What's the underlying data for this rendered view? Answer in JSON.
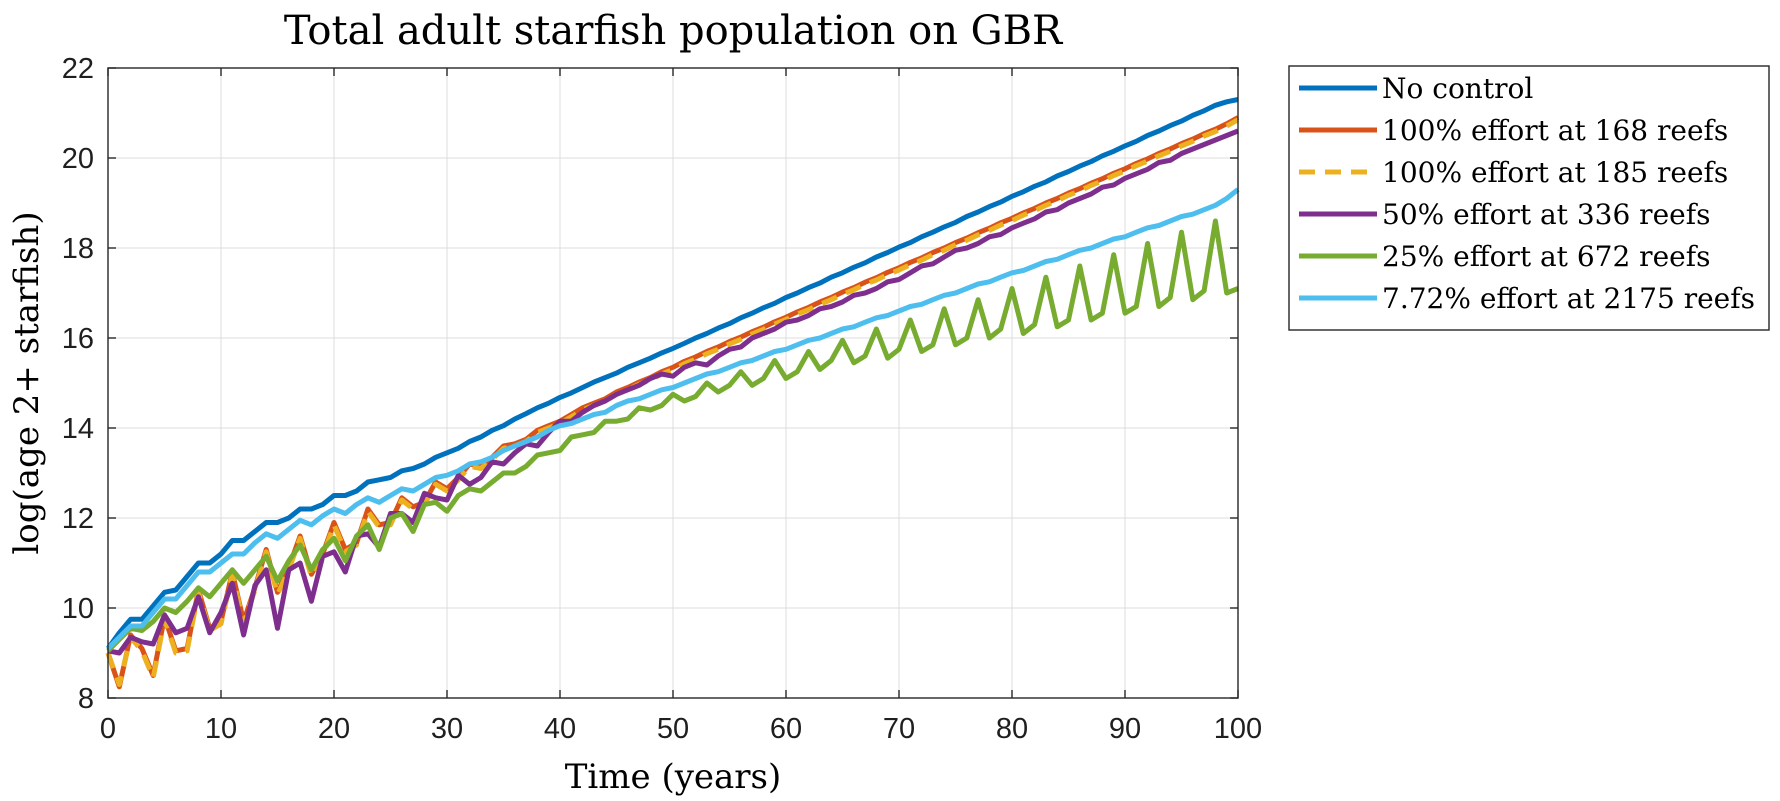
{
  "chart_data": {
    "type": "line",
    "title": "Total adult starfish population on GBR",
    "xlabel": "Time (years)",
    "ylabel": "log(age 2+ starfish)",
    "xlim": [
      0,
      100
    ],
    "ylim": [
      8,
      22
    ],
    "xticks": [
      0,
      10,
      20,
      30,
      40,
      50,
      60,
      70,
      80,
      90,
      100
    ],
    "yticks": [
      8,
      10,
      12,
      14,
      16,
      18,
      20,
      22
    ],
    "grid": true,
    "legend_position": "outside-top-right",
    "series": [
      {
        "name": "No control",
        "color": "#0072BD",
        "dash": "solid",
        "x": [
          0,
          1,
          2,
          3,
          4,
          5,
          6,
          7,
          8,
          9,
          10,
          11,
          12,
          13,
          14,
          15,
          16,
          17,
          18,
          19,
          20,
          21,
          22,
          23,
          24,
          25,
          26,
          27,
          28,
          29,
          30,
          31,
          32,
          33,
          34,
          35,
          36,
          37,
          38,
          39,
          40,
          41,
          42,
          43,
          44,
          45,
          46,
          47,
          48,
          49,
          50,
          51,
          52,
          53,
          54,
          55,
          56,
          57,
          58,
          59,
          60,
          61,
          62,
          63,
          64,
          65,
          66,
          67,
          68,
          69,
          70,
          71,
          72,
          73,
          74,
          75,
          76,
          77,
          78,
          79,
          80,
          81,
          82,
          83,
          84,
          85,
          86,
          87,
          88,
          89,
          90,
          91,
          92,
          93,
          94,
          95,
          96,
          97,
          98,
          99,
          100
        ],
        "y": [
          9.1,
          9.45,
          9.75,
          9.75,
          10.05,
          10.35,
          10.4,
          10.7,
          11.0,
          11.0,
          11.2,
          11.5,
          11.5,
          11.7,
          11.9,
          11.9,
          12.0,
          12.2,
          12.2,
          12.3,
          12.5,
          12.5,
          12.6,
          12.8,
          12.85,
          12.9,
          13.05,
          13.1,
          13.2,
          13.35,
          13.45,
          13.55,
          13.7,
          13.8,
          13.95,
          14.05,
          14.2,
          14.32,
          14.45,
          14.55,
          14.68,
          14.78,
          14.9,
          15.02,
          15.12,
          15.22,
          15.35,
          15.45,
          15.55,
          15.67,
          15.77,
          15.88,
          16.0,
          16.1,
          16.22,
          16.32,
          16.45,
          16.55,
          16.67,
          16.77,
          16.9,
          17.0,
          17.12,
          17.22,
          17.35,
          17.45,
          17.57,
          17.67,
          17.8,
          17.9,
          18.02,
          18.12,
          18.25,
          18.35,
          18.47,
          18.57,
          18.7,
          18.8,
          18.92,
          19.02,
          19.15,
          19.25,
          19.37,
          19.47,
          19.6,
          19.7,
          19.82,
          19.92,
          20.05,
          20.15,
          20.27,
          20.37,
          20.5,
          20.6,
          20.72,
          20.82,
          20.95,
          21.05,
          21.17,
          21.25,
          21.3
        ]
      },
      {
        "name": "100% effort at 168 reefs",
        "color": "#D95319",
        "dash": "solid",
        "x": [
          0,
          1,
          2,
          3,
          4,
          5,
          6,
          7,
          8,
          9,
          10,
          11,
          12,
          13,
          14,
          15,
          16,
          17,
          18,
          19,
          20,
          21,
          22,
          23,
          24,
          25,
          26,
          27,
          28,
          29,
          30,
          31,
          32,
          33,
          34,
          35,
          36,
          37,
          38,
          39,
          40,
          41,
          42,
          43,
          44,
          45,
          46,
          47,
          48,
          49,
          50,
          51,
          52,
          53,
          54,
          55,
          56,
          57,
          58,
          59,
          60,
          61,
          62,
          63,
          64,
          65,
          66,
          67,
          68,
          69,
          70,
          71,
          72,
          73,
          74,
          75,
          76,
          77,
          78,
          79,
          80,
          81,
          82,
          83,
          84,
          85,
          86,
          87,
          88,
          89,
          90,
          91,
          92,
          93,
          94,
          95,
          96,
          97,
          98,
          99,
          100
        ],
        "y": [
          9.0,
          8.25,
          9.4,
          9.1,
          8.5,
          9.8,
          9.05,
          9.1,
          10.4,
          9.55,
          9.7,
          10.8,
          9.7,
          10.45,
          11.3,
          10.35,
          10.9,
          11.6,
          10.75,
          11.2,
          11.9,
          11.3,
          11.45,
          12.2,
          11.85,
          11.9,
          12.45,
          12.25,
          12.35,
          12.8,
          12.65,
          12.9,
          13.2,
          13.15,
          13.35,
          13.6,
          13.65,
          13.75,
          13.95,
          14.05,
          14.15,
          14.3,
          14.45,
          14.55,
          14.65,
          14.8,
          14.9,
          15.02,
          15.12,
          15.25,
          15.35,
          15.48,
          15.58,
          15.7,
          15.8,
          15.92,
          16.02,
          16.14,
          16.24,
          16.36,
          16.46,
          16.58,
          16.68,
          16.8,
          16.9,
          17.02,
          17.12,
          17.24,
          17.34,
          17.46,
          17.56,
          17.68,
          17.78,
          17.9,
          18.0,
          18.12,
          18.22,
          18.34,
          18.44,
          18.56,
          18.66,
          18.78,
          18.88,
          19.0,
          19.1,
          19.22,
          19.32,
          19.44,
          19.54,
          19.66,
          19.76,
          19.88,
          19.98,
          20.1,
          20.2,
          20.32,
          20.42,
          20.54,
          20.64,
          20.76,
          20.9
        ]
      },
      {
        "name": "100% effort at 185 reefs",
        "color": "#EDB120",
        "dash": "dashed",
        "x": [
          0,
          1,
          2,
          3,
          4,
          5,
          6,
          7,
          8,
          9,
          10,
          11,
          12,
          13,
          14,
          15,
          16,
          17,
          18,
          19,
          20,
          21,
          22,
          23,
          24,
          25,
          26,
          27,
          28,
          29,
          30,
          31,
          32,
          33,
          34,
          35,
          36,
          37,
          38,
          39,
          40,
          41,
          42,
          43,
          44,
          45,
          46,
          47,
          48,
          49,
          50,
          51,
          52,
          53,
          54,
          55,
          56,
          57,
          58,
          59,
          60,
          61,
          62,
          63,
          64,
          65,
          66,
          67,
          68,
          69,
          70,
          71,
          72,
          73,
          74,
          75,
          76,
          77,
          78,
          79,
          80,
          81,
          82,
          83,
          84,
          85,
          86,
          87,
          88,
          89,
          90,
          91,
          92,
          93,
          94,
          95,
          96,
          97,
          98,
          99,
          100
        ],
        "y": [
          9.0,
          8.3,
          9.35,
          9.05,
          8.45,
          9.75,
          9.0,
          9.05,
          10.35,
          9.5,
          9.65,
          10.75,
          9.65,
          10.4,
          11.25,
          10.3,
          10.85,
          11.55,
          10.7,
          11.15,
          11.85,
          11.25,
          11.4,
          12.15,
          11.8,
          11.85,
          12.4,
          12.2,
          12.3,
          12.75,
          12.6,
          12.85,
          13.15,
          13.1,
          13.3,
          13.55,
          13.6,
          13.7,
          13.9,
          14.0,
          14.1,
          14.25,
          14.4,
          14.5,
          14.6,
          14.75,
          14.85,
          14.97,
          15.07,
          15.2,
          15.3,
          15.43,
          15.53,
          15.65,
          15.75,
          15.87,
          15.97,
          16.09,
          16.19,
          16.31,
          16.41,
          16.53,
          16.63,
          16.75,
          16.85,
          16.97,
          17.07,
          17.19,
          17.29,
          17.41,
          17.51,
          17.63,
          17.73,
          17.85,
          17.95,
          18.07,
          18.17,
          18.29,
          18.39,
          18.51,
          18.61,
          18.73,
          18.83,
          18.95,
          19.05,
          19.17,
          19.27,
          19.39,
          19.49,
          19.61,
          19.71,
          19.83,
          19.93,
          20.05,
          20.15,
          20.27,
          20.37,
          20.49,
          20.59,
          20.71,
          20.85
        ]
      },
      {
        "name": "50% effort at 336 reefs",
        "color": "#7E2F8E",
        "dash": "solid",
        "x": [
          0,
          1,
          2,
          3,
          4,
          5,
          6,
          7,
          8,
          9,
          10,
          11,
          12,
          13,
          14,
          15,
          16,
          17,
          18,
          19,
          20,
          21,
          22,
          23,
          24,
          25,
          26,
          27,
          28,
          29,
          30,
          31,
          32,
          33,
          34,
          35,
          36,
          37,
          38,
          39,
          40,
          41,
          42,
          43,
          44,
          45,
          46,
          47,
          48,
          49,
          50,
          51,
          52,
          53,
          54,
          55,
          56,
          57,
          58,
          59,
          60,
          61,
          62,
          63,
          64,
          65,
          66,
          67,
          68,
          69,
          70,
          71,
          72,
          73,
          74,
          75,
          76,
          77,
          78,
          79,
          80,
          81,
          82,
          83,
          84,
          85,
          86,
          87,
          88,
          89,
          90,
          91,
          92,
          93,
          94,
          95,
          96,
          97,
          98,
          99,
          100
        ],
        "y": [
          9.05,
          9.0,
          9.35,
          9.25,
          9.2,
          9.85,
          9.45,
          9.55,
          10.25,
          9.45,
          9.9,
          10.55,
          9.4,
          10.5,
          10.85,
          9.55,
          10.85,
          11.0,
          10.15,
          11.15,
          11.25,
          10.8,
          11.6,
          11.65,
          11.35,
          12.1,
          12.1,
          11.9,
          12.55,
          12.45,
          12.4,
          12.95,
          12.75,
          12.9,
          13.25,
          13.2,
          13.45,
          13.65,
          13.6,
          13.9,
          14.15,
          14.15,
          14.35,
          14.5,
          14.6,
          14.75,
          14.85,
          14.95,
          15.1,
          15.2,
          15.15,
          15.35,
          15.45,
          15.4,
          15.6,
          15.75,
          15.8,
          16.0,
          16.1,
          16.2,
          16.35,
          16.4,
          16.5,
          16.65,
          16.7,
          16.8,
          16.95,
          17.0,
          17.1,
          17.25,
          17.3,
          17.45,
          17.6,
          17.65,
          17.8,
          17.95,
          18.0,
          18.1,
          18.25,
          18.3,
          18.45,
          18.55,
          18.65,
          18.8,
          18.85,
          19.0,
          19.1,
          19.2,
          19.35,
          19.4,
          19.55,
          19.65,
          19.75,
          19.9,
          19.95,
          20.1,
          20.2,
          20.3,
          20.4,
          20.5,
          20.6
        ]
      },
      {
        "name": "25% effort at 672 reefs",
        "color": "#77AC30",
        "dash": "solid",
        "x": [
          0,
          1,
          2,
          3,
          4,
          5,
          6,
          7,
          8,
          9,
          10,
          11,
          12,
          13,
          14,
          15,
          16,
          17,
          18,
          19,
          20,
          21,
          22,
          23,
          24,
          25,
          26,
          27,
          28,
          29,
          30,
          31,
          32,
          33,
          34,
          35,
          36,
          37,
          38,
          39,
          40,
          41,
          42,
          43,
          44,
          45,
          46,
          47,
          48,
          49,
          50,
          51,
          52,
          53,
          54,
          55,
          56,
          57,
          58,
          59,
          60,
          61,
          62,
          63,
          64,
          65,
          66,
          67,
          68,
          69,
          70,
          71,
          72,
          73,
          74,
          75,
          76,
          77,
          78,
          79,
          80,
          81,
          82,
          83,
          84,
          85,
          86,
          87,
          88,
          89,
          90,
          91,
          92,
          93,
          94,
          95,
          96,
          97,
          98,
          99,
          100
        ],
        "y": [
          9.05,
          9.3,
          9.55,
          9.5,
          9.7,
          10.0,
          9.9,
          10.15,
          10.45,
          10.25,
          10.55,
          10.85,
          10.55,
          10.85,
          11.15,
          10.6,
          11.05,
          11.4,
          10.85,
          11.3,
          11.55,
          11.05,
          11.6,
          11.85,
          11.3,
          12.0,
          12.1,
          11.7,
          12.3,
          12.35,
          12.15,
          12.5,
          12.65,
          12.6,
          12.8,
          13.0,
          13.0,
          13.15,
          13.4,
          13.45,
          13.5,
          13.8,
          13.85,
          13.9,
          14.15,
          14.15,
          14.2,
          14.45,
          14.4,
          14.5,
          14.75,
          14.6,
          14.7,
          15.0,
          14.8,
          14.95,
          15.25,
          14.95,
          15.1,
          15.5,
          15.1,
          15.25,
          15.7,
          15.3,
          15.5,
          15.95,
          15.45,
          15.6,
          16.2,
          15.55,
          15.75,
          16.4,
          15.7,
          15.85,
          16.65,
          15.85,
          16.0,
          16.85,
          16.0,
          16.2,
          17.1,
          16.1,
          16.3,
          17.35,
          16.25,
          16.4,
          17.6,
          16.4,
          16.55,
          17.85,
          16.55,
          16.7,
          18.1,
          16.7,
          16.9,
          18.35,
          16.85,
          17.05,
          18.6,
          17.0,
          17.1
        ]
      },
      {
        "name": "7.72% effort at 2175 reefs",
        "color": "#4DBEEE",
        "dash": "solid",
        "x": [
          0,
          1,
          2,
          3,
          4,
          5,
          6,
          7,
          8,
          9,
          10,
          11,
          12,
          13,
          14,
          15,
          16,
          17,
          18,
          19,
          20,
          21,
          22,
          23,
          24,
          25,
          26,
          27,
          28,
          29,
          30,
          31,
          32,
          33,
          34,
          35,
          36,
          37,
          38,
          39,
          40,
          41,
          42,
          43,
          44,
          45,
          46,
          47,
          48,
          49,
          50,
          51,
          52,
          53,
          54,
          55,
          56,
          57,
          58,
          59,
          60,
          61,
          62,
          63,
          64,
          65,
          66,
          67,
          68,
          69,
          70,
          71,
          72,
          73,
          74,
          75,
          76,
          77,
          78,
          79,
          80,
          81,
          82,
          83,
          84,
          85,
          86,
          87,
          88,
          89,
          90,
          91,
          92,
          93,
          94,
          95,
          96,
          97,
          98,
          99,
          100
        ],
        "y": [
          9.1,
          9.35,
          9.6,
          9.6,
          9.9,
          10.2,
          10.2,
          10.5,
          10.8,
          10.8,
          11.0,
          11.2,
          11.2,
          11.45,
          11.65,
          11.55,
          11.75,
          11.95,
          11.85,
          12.05,
          12.2,
          12.1,
          12.3,
          12.45,
          12.35,
          12.5,
          12.65,
          12.6,
          12.75,
          12.9,
          12.95,
          13.05,
          13.2,
          13.25,
          13.35,
          13.5,
          13.6,
          13.7,
          13.8,
          13.95,
          14.05,
          14.1,
          14.2,
          14.3,
          14.35,
          14.5,
          14.6,
          14.65,
          14.75,
          14.85,
          14.9,
          15.0,
          15.1,
          15.2,
          15.25,
          15.35,
          15.45,
          15.5,
          15.6,
          15.7,
          15.75,
          15.85,
          15.95,
          16.0,
          16.1,
          16.2,
          16.25,
          16.35,
          16.45,
          16.5,
          16.6,
          16.7,
          16.75,
          16.85,
          16.95,
          17.0,
          17.1,
          17.2,
          17.25,
          17.35,
          17.45,
          17.5,
          17.6,
          17.7,
          17.75,
          17.85,
          17.95,
          18.0,
          18.1,
          18.2,
          18.25,
          18.35,
          18.45,
          18.5,
          18.6,
          18.7,
          18.75,
          18.85,
          18.95,
          19.1,
          19.3
        ]
      }
    ]
  }
}
